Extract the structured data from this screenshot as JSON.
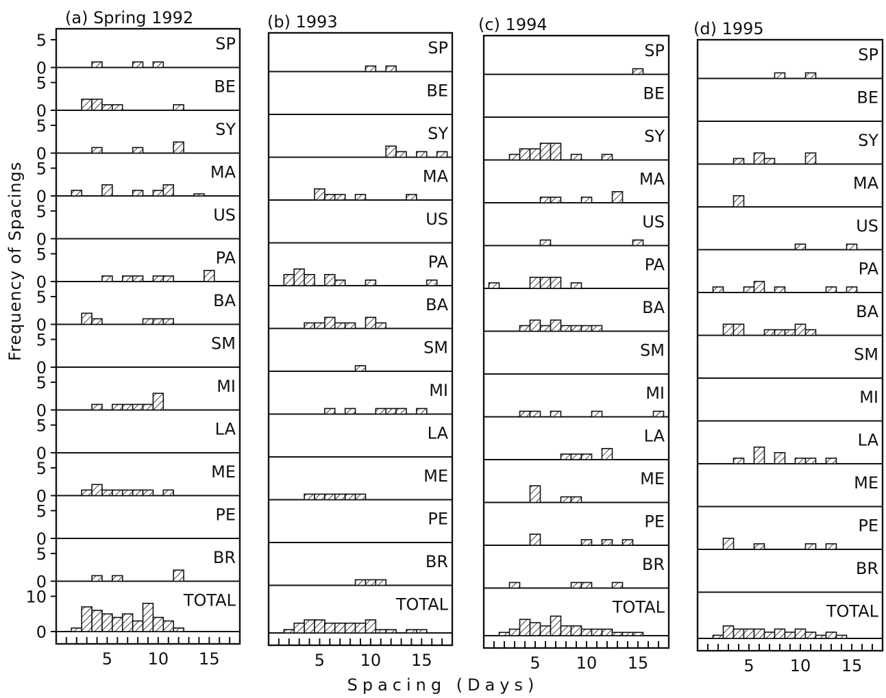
{
  "figure": {
    "ylabel": "Frequency of Spacings",
    "xlabel": "Spacing (Days)",
    "colors": {
      "ink": "#111111",
      "paper": "#ffffff"
    }
  },
  "chart_data": [
    {
      "type": "bar",
      "title": "(a) Spring 1992",
      "x_ticks": [
        5,
        10,
        15
      ],
      "rows": [
        {
          "label": "SP",
          "bars": [
            [
              4,
              1
            ],
            [
              8,
              1
            ],
            [
              10,
              1
            ]
          ]
        },
        {
          "label": "BE",
          "bars": [
            [
              3,
              2
            ],
            [
              4,
              2
            ],
            [
              5,
              1
            ],
            [
              6,
              1
            ],
            [
              12,
              1
            ]
          ]
        },
        {
          "label": "SY",
          "bars": [
            [
              4,
              1
            ],
            [
              8,
              1
            ],
            [
              12,
              2
            ]
          ]
        },
        {
          "label": "MA",
          "bars": [
            [
              2,
              1
            ],
            [
              5,
              2
            ],
            [
              8,
              1
            ],
            [
              10,
              1
            ],
            [
              11,
              2
            ],
            [
              14,
              0.3
            ]
          ]
        },
        {
          "label": "US",
          "bars": []
        },
        {
          "label": "PA",
          "bars": [
            [
              5,
              1
            ],
            [
              7,
              1
            ],
            [
              8,
              1
            ],
            [
              10,
              1
            ],
            [
              11,
              1
            ],
            [
              15,
              2
            ]
          ]
        },
        {
          "label": "BA",
          "bars": [
            [
              3,
              2
            ],
            [
              4,
              1
            ],
            [
              9,
              1
            ],
            [
              10,
              1
            ],
            [
              11,
              1
            ]
          ]
        },
        {
          "label": "SM",
          "bars": []
        },
        {
          "label": "MI",
          "bars": [
            [
              4,
              1
            ],
            [
              6,
              1
            ],
            [
              7,
              1
            ],
            [
              8,
              1
            ],
            [
              9,
              1
            ],
            [
              10,
              3
            ]
          ]
        },
        {
          "label": "LA",
          "bars": []
        },
        {
          "label": "ME",
          "bars": [
            [
              3,
              1
            ],
            [
              4,
              2
            ],
            [
              5,
              1
            ],
            [
              6,
              1
            ],
            [
              7,
              1
            ],
            [
              8,
              1
            ],
            [
              9,
              1
            ],
            [
              11,
              1
            ]
          ]
        },
        {
          "label": "PE",
          "bars": []
        },
        {
          "label": "BR",
          "bars": [
            [
              4,
              1
            ],
            [
              6,
              1
            ],
            [
              12,
              2
            ]
          ]
        },
        {
          "label": "TOTAL",
          "bars": [
            [
              2,
              1
            ],
            [
              3,
              7
            ],
            [
              4,
              6
            ],
            [
              5,
              5
            ],
            [
              6,
              4
            ],
            [
              7,
              5
            ],
            [
              8,
              3
            ],
            [
              9,
              8
            ],
            [
              10,
              4
            ],
            [
              11,
              3
            ],
            [
              12,
              1
            ]
          ]
        }
      ]
    },
    {
      "type": "bar",
      "title": "(b) 1993",
      "x_ticks": [
        5,
        10,
        15
      ],
      "rows": [
        {
          "label": "SP",
          "bars": [
            [
              10,
              1
            ],
            [
              12,
              1
            ]
          ]
        },
        {
          "label": "BE",
          "bars": []
        },
        {
          "label": "SY",
          "bars": [
            [
              12,
              2
            ],
            [
              13,
              1
            ],
            [
              15,
              1
            ],
            [
              17,
              1
            ]
          ]
        },
        {
          "label": "MA",
          "bars": [
            [
              5,
              2
            ],
            [
              6,
              1
            ],
            [
              7,
              1
            ],
            [
              9,
              1
            ],
            [
              14,
              1
            ]
          ]
        },
        {
          "label": "US",
          "bars": []
        },
        {
          "label": "PA",
          "bars": [
            [
              2,
              2
            ],
            [
              3,
              3
            ],
            [
              4,
              2
            ],
            [
              6,
              2
            ],
            [
              7,
              1
            ],
            [
              10,
              1
            ],
            [
              16,
              1
            ]
          ]
        },
        {
          "label": "BA",
          "bars": [
            [
              4,
              1
            ],
            [
              5,
              1
            ],
            [
              6,
              2
            ],
            [
              7,
              1
            ],
            [
              8,
              1
            ],
            [
              10,
              2
            ],
            [
              11,
              1
            ]
          ]
        },
        {
          "label": "SM",
          "bars": [
            [
              9,
              1
            ]
          ]
        },
        {
          "label": "MI",
          "bars": [
            [
              6,
              1
            ],
            [
              8,
              1
            ],
            [
              11,
              1
            ],
            [
              12,
              1
            ],
            [
              13,
              1
            ],
            [
              15,
              1
            ]
          ]
        },
        {
          "label": "LA",
          "bars": []
        },
        {
          "label": "ME",
          "bars": [
            [
              4,
              1
            ],
            [
              5,
              1
            ],
            [
              6,
              1
            ],
            [
              7,
              1
            ],
            [
              8,
              1
            ],
            [
              9,
              1
            ]
          ]
        },
        {
          "label": "PE",
          "bars": []
        },
        {
          "label": "BR",
          "bars": [
            [
              9,
              1
            ],
            [
              10,
              1
            ],
            [
              11,
              1
            ]
          ]
        },
        {
          "label": "TOTAL",
          "bars": [
            [
              2,
              1
            ],
            [
              3,
              3
            ],
            [
              4,
              4
            ],
            [
              5,
              4
            ],
            [
              6,
              3
            ],
            [
              7,
              3
            ],
            [
              8,
              3
            ],
            [
              9,
              3
            ],
            [
              10,
              4
            ],
            [
              11,
              1
            ],
            [
              12,
              1
            ],
            [
              14,
              1
            ],
            [
              15,
              1
            ]
          ]
        }
      ]
    },
    {
      "type": "bar",
      "title": "(c) 1994",
      "x_ticks": [
        5,
        10,
        15
      ],
      "rows": [
        {
          "label": "SP",
          "bars": [
            [
              15,
              1
            ]
          ]
        },
        {
          "label": "BE",
          "bars": []
        },
        {
          "label": "SY",
          "bars": [
            [
              3,
              1
            ],
            [
              4,
              2
            ],
            [
              5,
              2
            ],
            [
              6,
              3
            ],
            [
              7,
              3
            ],
            [
              9,
              1
            ],
            [
              12,
              1
            ]
          ]
        },
        {
          "label": "MA",
          "bars": [
            [
              6,
              1
            ],
            [
              7,
              1
            ],
            [
              10,
              1
            ],
            [
              13,
              2
            ]
          ]
        },
        {
          "label": "US",
          "bars": [
            [
              6,
              1
            ],
            [
              15,
              1
            ]
          ]
        },
        {
          "label": "PA",
          "bars": [
            [
              1,
              1
            ],
            [
              5,
              2
            ],
            [
              6,
              2
            ],
            [
              7,
              2
            ],
            [
              9,
              1
            ]
          ]
        },
        {
          "label": "BA",
          "bars": [
            [
              4,
              1
            ],
            [
              5,
              2
            ],
            [
              6,
              1
            ],
            [
              7,
              2
            ],
            [
              8,
              1
            ],
            [
              9,
              1
            ],
            [
              10,
              1
            ],
            [
              11,
              1
            ]
          ]
        },
        {
          "label": "SM",
          "bars": []
        },
        {
          "label": "MI",
          "bars": [
            [
              4,
              1
            ],
            [
              5,
              1
            ],
            [
              7,
              1
            ],
            [
              11,
              1
            ],
            [
              17,
              1
            ]
          ]
        },
        {
          "label": "LA",
          "bars": [
            [
              8,
              1
            ],
            [
              9,
              1
            ],
            [
              10,
              1
            ],
            [
              12,
              2
            ]
          ]
        },
        {
          "label": "ME",
          "bars": [
            [
              5,
              3
            ],
            [
              8,
              1
            ],
            [
              9,
              1
            ]
          ]
        },
        {
          "label": "PE",
          "bars": [
            [
              5,
              2
            ],
            [
              10,
              1
            ],
            [
              12,
              1
            ],
            [
              14,
              1
            ]
          ]
        },
        {
          "label": "BR",
          "bars": [
            [
              3,
              1
            ],
            [
              9,
              1
            ],
            [
              10,
              1
            ],
            [
              13,
              1
            ]
          ]
        },
        {
          "label": "TOTAL",
          "bars": [
            [
              2,
              1
            ],
            [
              3,
              2
            ],
            [
              4,
              5
            ],
            [
              5,
              4
            ],
            [
              6,
              3
            ],
            [
              7,
              6
            ],
            [
              8,
              3
            ],
            [
              9,
              3
            ],
            [
              10,
              2
            ],
            [
              11,
              2
            ],
            [
              12,
              2
            ],
            [
              13,
              1
            ],
            [
              14,
              1
            ],
            [
              15,
              1
            ]
          ]
        }
      ]
    },
    {
      "type": "bar",
      "title": "(d) 1995",
      "x_ticks": [
        5,
        10,
        15
      ],
      "rows": [
        {
          "label": "SP",
          "bars": [
            [
              8,
              1
            ],
            [
              11,
              1
            ]
          ]
        },
        {
          "label": "BE",
          "bars": []
        },
        {
          "label": "SY",
          "bars": [
            [
              4,
              1
            ],
            [
              6,
              2
            ],
            [
              7,
              1
            ],
            [
              11,
              2
            ]
          ]
        },
        {
          "label": "MA",
          "bars": [
            [
              4,
              2
            ]
          ]
        },
        {
          "label": "US",
          "bars": [
            [
              10,
              1
            ],
            [
              15,
              1
            ]
          ]
        },
        {
          "label": "PA",
          "bars": [
            [
              2,
              1
            ],
            [
              5,
              1
            ],
            [
              6,
              2
            ],
            [
              8,
              1
            ],
            [
              13,
              1
            ],
            [
              15,
              1
            ]
          ]
        },
        {
          "label": "BA",
          "bars": [
            [
              3,
              2
            ],
            [
              4,
              2
            ],
            [
              7,
              1
            ],
            [
              8,
              1
            ],
            [
              9,
              1
            ],
            [
              10,
              2
            ],
            [
              11,
              1
            ]
          ]
        },
        {
          "label": "SM",
          "bars": []
        },
        {
          "label": "MI",
          "bars": []
        },
        {
          "label": "LA",
          "bars": [
            [
              4,
              1
            ],
            [
              6,
              3
            ],
            [
              8,
              2
            ],
            [
              10,
              1
            ],
            [
              11,
              1
            ],
            [
              13,
              1
            ]
          ]
        },
        {
          "label": "ME",
          "bars": []
        },
        {
          "label": "PE",
          "bars": [
            [
              3,
              2
            ],
            [
              6,
              1
            ],
            [
              11,
              1
            ],
            [
              13,
              1
            ]
          ]
        },
        {
          "label": "BR",
          "bars": []
        },
        {
          "label": "TOTAL",
          "bars": [
            [
              2,
              1
            ],
            [
              3,
              4
            ],
            [
              4,
              3
            ],
            [
              5,
              3
            ],
            [
              6,
              3
            ],
            [
              7,
              2
            ],
            [
              8,
              3
            ],
            [
              9,
              2
            ],
            [
              10,
              3
            ],
            [
              11,
              2
            ],
            [
              12,
              1
            ],
            [
              13,
              2
            ],
            [
              14,
              1
            ]
          ]
        }
      ]
    }
  ]
}
